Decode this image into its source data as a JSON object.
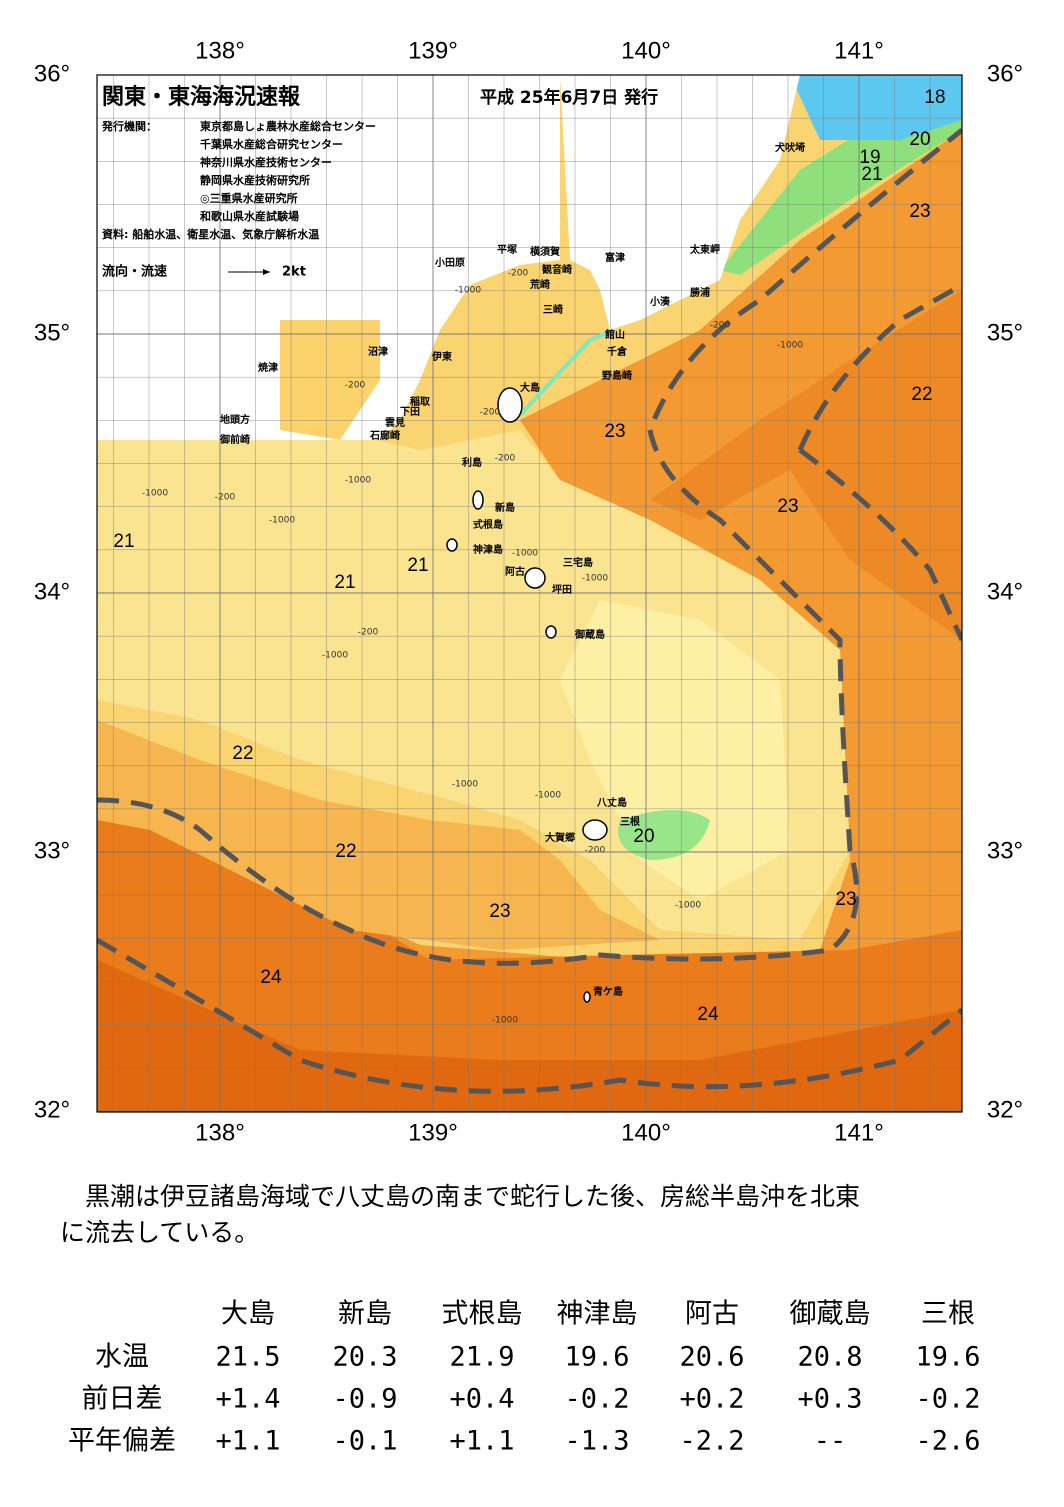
{
  "header": {
    "title": "関東・東海海況速報",
    "date": "平成 25年6月7日 発行",
    "issuers_label": "発行機関：",
    "issuers": [
      "東京都島しょ農林水産総合センター",
      "千葉県水産総合研究センター",
      "神奈川県水産技術センター",
      "静岡県水産技術研究所",
      "◎三重県水産研究所",
      "和歌山県水産試験場"
    ],
    "source": "資料: 船舶水温、衛星水温、気象庁解析水温"
  },
  "legend": {
    "label": "流向・流速",
    "scale": "2kt"
  },
  "map": {
    "lon_labels": [
      "138°",
      "139°",
      "140°",
      "141°"
    ],
    "lat_labels": [
      "36°",
      "35°",
      "34°",
      "33°",
      "32°"
    ],
    "place_names": [
      "犬吠埼",
      "太東岬",
      "勝浦",
      "小湊",
      "富津",
      "横須賀",
      "観音崎",
      "荒崎",
      "三崎",
      "平塚",
      "小田原",
      "館山",
      "千倉",
      "野島崎",
      "大島",
      "沼津",
      "伊東",
      "焼津",
      "稲取",
      "下田",
      "雲見",
      "石廊崎",
      "地頭方",
      "御前崎",
      "利島",
      "新島",
      "式根島",
      "神津島",
      "三宅島",
      "阿古",
      "坪田",
      "御蔵島",
      "八丈島",
      "三根",
      "大賀郷",
      "青ケ島"
    ],
    "temperature_labels": [
      "18",
      "20",
      "19",
      "21",
      "23",
      "22",
      "23",
      "23",
      "21",
      "21",
      "21",
      "22",
      "22",
      "20",
      "23",
      "23",
      "24",
      "24"
    ],
    "depth_labels": [
      "-200",
      "-1000",
      "-200",
      "-1000",
      "-200",
      "-200",
      "-1000",
      "-200",
      "-1000",
      "-200",
      "-1000",
      "-200",
      "-1000",
      "-1000",
      "-1000",
      "-1000",
      "-1000",
      "-200",
      "-1000",
      "-1000"
    ]
  },
  "summary": [
    "　黒潮は伊豆諸島海域で八丈島の南まで蛇行した後、房総半島沖を北東",
    "に流去している。"
  ],
  "table": {
    "columns": [
      "大島",
      "新島",
      "式根島",
      "神津島",
      "阿古",
      "御蔵島",
      "三根"
    ],
    "rows": [
      [
        "水温",
        "21.5",
        "20.3",
        "21.9",
        "19.6",
        "20.6",
        "20.8",
        "19.6"
      ],
      [
        "前日差",
        "+1.4",
        "-0.9",
        "+0.4",
        "-0.2",
        "+0.2",
        "+0.3",
        "-0.2"
      ],
      [
        "平年偏差",
        "+1.1",
        "-0.1",
        "+1.1",
        "-1.3",
        "-2.2",
        "--",
        "-2.6"
      ]
    ]
  }
}
